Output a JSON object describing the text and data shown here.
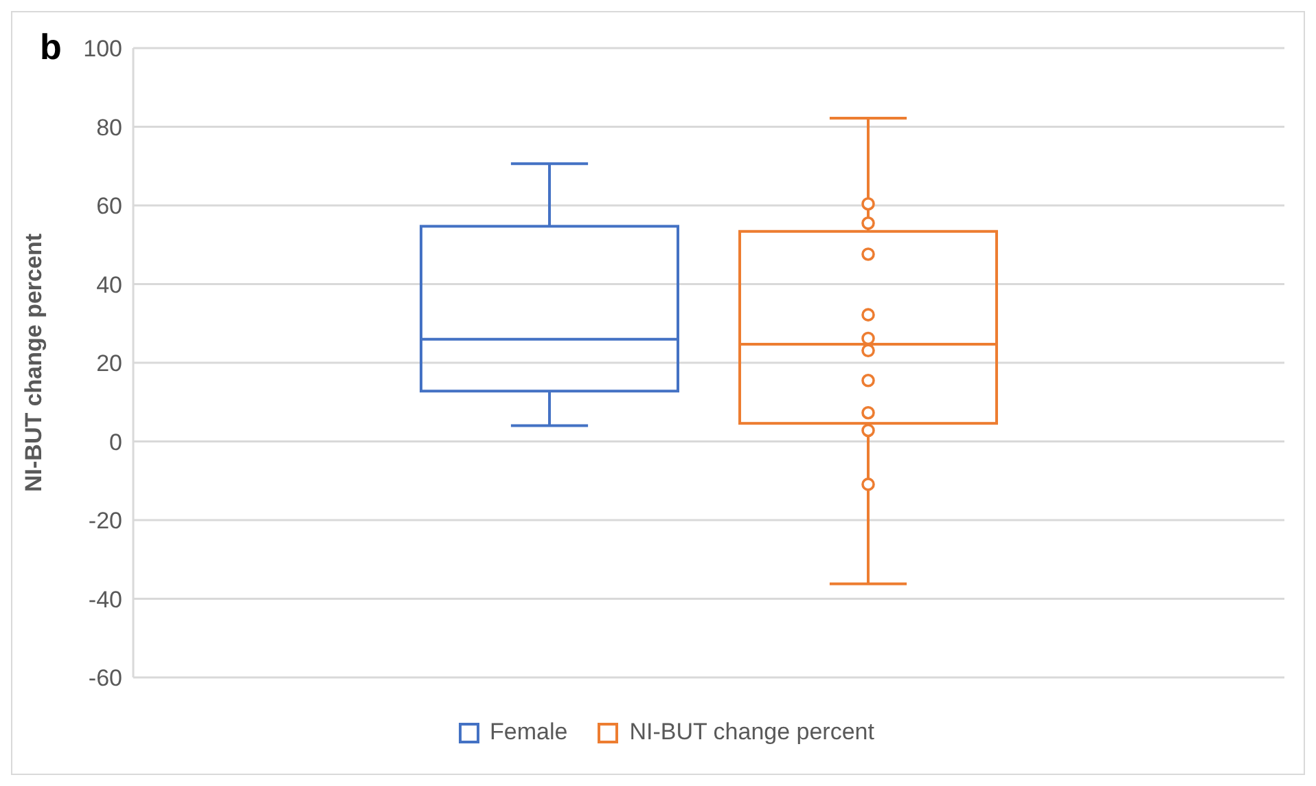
{
  "chart_data": {
    "type": "box",
    "title": "b",
    "ylabel": "NI-BUT change percent",
    "categories": [
      null
    ],
    "ylim": [
      -60,
      100
    ],
    "yticks": [
      -60,
      -40,
      -20,
      0,
      20,
      40,
      60,
      80,
      100
    ],
    "grid": "y",
    "legend": "bottom",
    "series": [
      {
        "name": "Female",
        "color": "#4472c4",
        "boxes": [
          {
            "low": 4.0,
            "q1": 12.8,
            "median": 26.0,
            "q3": 54.7,
            "high": 70.6
          }
        ]
      },
      {
        "name": "NI-BUT change percent",
        "color": "#ed7d31",
        "boxes": [
          {
            "low": -36.2,
            "q1": 4.6,
            "median": 24.7,
            "q3": 53.4,
            "high": 82.2,
            "outliers": [
              60.4,
              55.5,
              47.6,
              32.2,
              26.2,
              23.1,
              15.5,
              7.3,
              2.8,
              -10.9
            ]
          }
        ]
      }
    ]
  }
}
